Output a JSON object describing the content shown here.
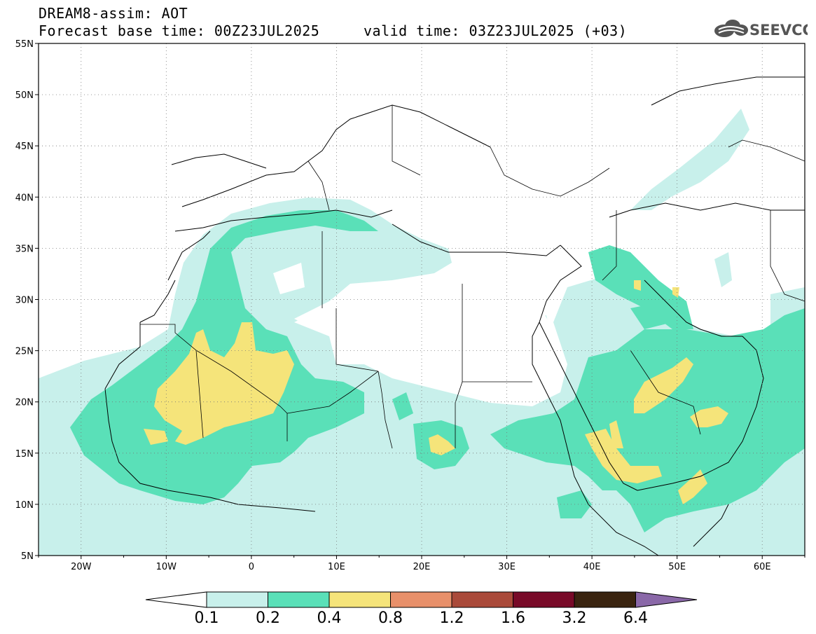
{
  "header": {
    "title_line1": "DREAM8-assim: AOT",
    "title_line2": "Forecast base time: 00Z23JUL2025     valid time: 03Z23JUL2025 (+03)",
    "logo_text": "SEEVCCC"
  },
  "map": {
    "lon_range": [
      -25,
      65
    ],
    "lat_range": [
      5,
      55
    ],
    "lat_ticks": [
      "55N",
      "50N",
      "45N",
      "40N",
      "35N",
      "30N",
      "25N",
      "20N",
      "15N",
      "10N",
      "5N"
    ],
    "lon_ticks": [
      "20W",
      "10W",
      "0",
      "10E",
      "20E",
      "30E",
      "40E",
      "50E",
      "60E"
    ],
    "gridlines": "dotted",
    "variable": "Aerosol Optical Thickness (dust)"
  },
  "colorbar": {
    "levels": [
      "0.1",
      "0.2",
      "0.4",
      "0.8",
      "1.2",
      "1.6",
      "3.2",
      "6.4"
    ],
    "colors": [
      "#ffffff",
      "#c8f0eb",
      "#5ae0b8",
      "#f5e47a",
      "#e8906a",
      "#aa4a3a",
      "#780a28",
      "#3a2410",
      "#8a68a8"
    ]
  }
}
